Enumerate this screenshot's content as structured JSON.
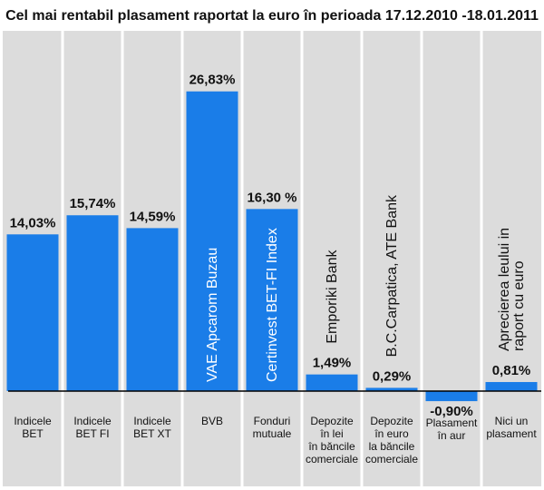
{
  "chart_data": {
    "type": "bar",
    "title": "Cel mai rentabil plasament raportat la euro în perioada 17.12.2010 -18.01.2011",
    "xlabel": "",
    "ylabel": "",
    "ylim": [
      -2,
      31
    ],
    "grid": false,
    "legend": "none",
    "unit": "%",
    "categories": [
      [
        "Indicele",
        "BET"
      ],
      [
        "Indicele",
        "BET FI"
      ],
      [
        "Indicele",
        "BET XT"
      ],
      [
        "BVB"
      ],
      [
        "Fonduri",
        "mutuale"
      ],
      [
        "Depozite",
        "în lei",
        "în băncile",
        "comerciale"
      ],
      [
        "Depozite",
        "în euro",
        "la băncile",
        "comerciale"
      ],
      [
        "Plasament",
        "în aur"
      ],
      [
        "Nici un",
        "plasament"
      ]
    ],
    "values": [
      14.03,
      15.74,
      14.59,
      26.83,
      16.3,
      1.49,
      0.29,
      -0.9,
      0.81
    ],
    "value_labels": [
      "14,03%",
      "15,74%",
      "14,59%",
      "26,83%",
      "16,30 %",
      "1,49%",
      "0,29%",
      "-0,90%",
      "0,81%"
    ],
    "annotations": [
      {
        "category_index": 3,
        "text": [
          "VAE Apcarom Buzau"
        ],
        "placement": "inside-bar"
      },
      {
        "category_index": 4,
        "text": [
          "Certinvest BET-FI Index"
        ],
        "placement": "inside-bar"
      },
      {
        "category_index": 5,
        "text": [
          "Emporiki Bank"
        ],
        "placement": "above-label"
      },
      {
        "category_index": 6,
        "text": [
          "B.C.Carpatica, ATE Bank"
        ],
        "placement": "above-label"
      },
      {
        "category_index": 8,
        "text": [
          "Aprecierea leului in",
          "raport cu euro"
        ],
        "placement": "above-label"
      }
    ]
  },
  "colors": {
    "bar": "#1a7de8",
    "background": "#ffffff",
    "panel": "#dcdcdc",
    "divider": "#ffffff",
    "axis": "#000000",
    "inside_text": "#ffffff",
    "text": "#111111"
  }
}
